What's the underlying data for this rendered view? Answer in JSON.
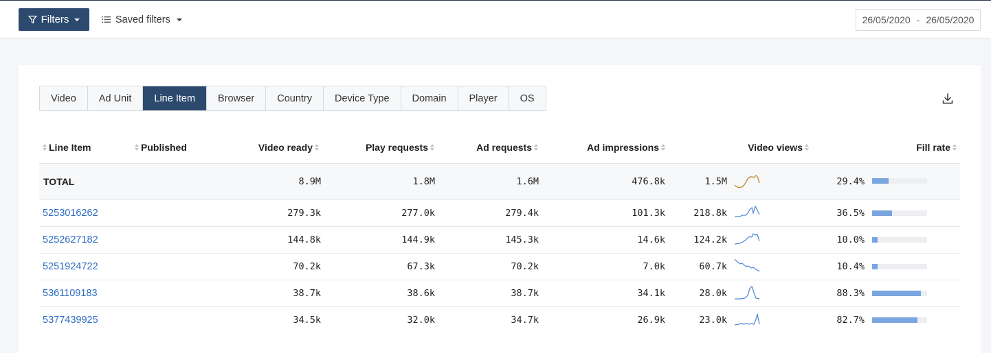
{
  "toolbar": {
    "filters_label": "Filters",
    "saved_filters_label": "Saved filters",
    "date_from": "26/05/2020",
    "date_sep": "-",
    "date_to": "26/05/2020"
  },
  "tabs": [
    {
      "label": "Video",
      "active": false
    },
    {
      "label": "Ad Unit",
      "active": false
    },
    {
      "label": "Line Item",
      "active": true
    },
    {
      "label": "Browser",
      "active": false
    },
    {
      "label": "Country",
      "active": false
    },
    {
      "label": "Device Type",
      "active": false
    },
    {
      "label": "Domain",
      "active": false
    },
    {
      "label": "Player",
      "active": false
    },
    {
      "label": "OS",
      "active": false
    }
  ],
  "columns": [
    "Line Item",
    "Published",
    "Video ready",
    "Play requests",
    "Ad requests",
    "Ad impressions",
    "Video views",
    "Fill rate"
  ],
  "total": {
    "label": "TOTAL",
    "video_ready": "8.9M",
    "play_requests": "1.8M",
    "ad_requests": "1.6M",
    "ad_impressions": "476.8k",
    "video_views": "1.5M",
    "fill_rate": "29.4%",
    "fill_fraction": 0.294
  },
  "rows": [
    {
      "id": "5253016262",
      "video_ready": "279.3k",
      "play_requests": "277.0k",
      "ad_requests": "279.4k",
      "ad_impressions": "101.3k",
      "video_views": "218.8k",
      "fill_rate": "36.5%",
      "fill_fraction": 0.365
    },
    {
      "id": "5252627182",
      "video_ready": "144.8k",
      "play_requests": "144.9k",
      "ad_requests": "145.3k",
      "ad_impressions": "14.6k",
      "video_views": "124.2k",
      "fill_rate": "10.0%",
      "fill_fraction": 0.1
    },
    {
      "id": "5251924722",
      "video_ready": "70.2k",
      "play_requests": "67.3k",
      "ad_requests": "70.2k",
      "ad_impressions": "7.0k",
      "video_views": "60.7k",
      "fill_rate": "10.4%",
      "fill_fraction": 0.104
    },
    {
      "id": "5361109183",
      "video_ready": "38.7k",
      "play_requests": "38.6k",
      "ad_requests": "38.7k",
      "ad_impressions": "34.1k",
      "video_views": "28.0k",
      "fill_rate": "88.3%",
      "fill_fraction": 0.883
    },
    {
      "id": "5377439925",
      "video_ready": "34.5k",
      "play_requests": "32.0k",
      "ad_requests": "34.7k",
      "ad_impressions": "26.9k",
      "video_views": "23.0k",
      "fill_rate": "82.7%",
      "fill_fraction": 0.827
    }
  ],
  "colors": {
    "primary": "#2c4a6e",
    "link": "#2d6cc0",
    "spark_total": "#c8893a",
    "spark_row": "#4a86d8",
    "bar_fill": "#7aa6e0"
  },
  "icons": {
    "filter": "filter-icon",
    "list": "list-icon",
    "download": "download-icon"
  }
}
